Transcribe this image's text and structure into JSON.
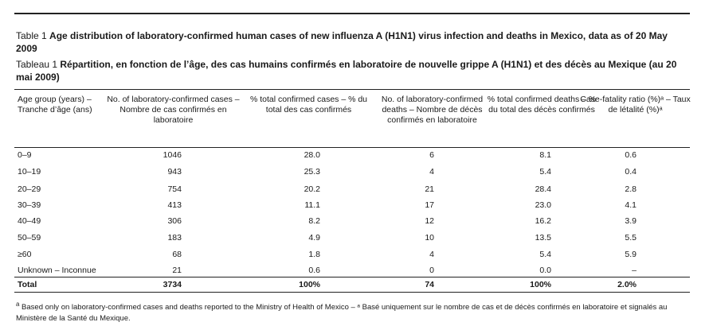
{
  "caption_en": {
    "label": "Table 1",
    "text": "Age distribution of laboratory-confirmed human cases of new influenza A (H1N1) virus infection and deaths in Mexico, data as of 20 May 2009"
  },
  "caption_fr": {
    "label": "Tableau 1",
    "text": "Répartition, en fonction de l’âge, des cas humains confirmés en laboratoire de nouvelle grippe A (H1N1) et des décès au Mexique (au 20 mai 2009)"
  },
  "table": {
    "headers": [
      "Age group (years) – Tranche d’âge (ans)",
      "No. of laboratory-confirmed cases – Nombre de cas confirmés en laboratoire",
      "% total confirmed cases – % du total des cas confirmés",
      "No. of laboratory-confirmed deaths – Nombre de décès confirmés en laboratoire",
      "% total confirmed deaths – % du total des décès confirmés",
      "Case-fatality ratio (%)ᵃ – Taux de létalité (%)ᵃ"
    ],
    "rows": [
      [
        "0–9",
        "1046",
        "28.0",
        "6",
        "8.1",
        "0.6"
      ],
      [
        "10–19",
        "943",
        "25.3",
        "4",
        "5.4",
        "0.4"
      ],
      [
        "20–29",
        "754",
        "20.2",
        "21",
        "28.4",
        "2.8"
      ],
      [
        "30–39",
        "413",
        "11.1",
        "17",
        "23.0",
        "4.1"
      ],
      [
        "40–49",
        "306",
        "8.2",
        "12",
        "16.2",
        "3.9"
      ],
      [
        "50–59",
        "183",
        "4.9",
        "10",
        "13.5",
        "5.5"
      ],
      [
        "≥60",
        "68",
        "1.8",
        "4",
        "5.4",
        "5.9"
      ],
      [
        "Unknown – Inconnue",
        "21",
        "0.6",
        "0",
        "0.0",
        "–"
      ]
    ],
    "total": [
      "Total",
      "3734",
      "100%",
      "74",
      "100%",
      "2.0%"
    ]
  },
  "footnote": {
    "marker": "a",
    "text": "Based only on laboratory-confirmed cases and deaths reported to the Ministry of Health of Mexico – ᵃ Basé uniquement sur le nombre de cas et de décès confirmés en laboratoire et signalés au Ministère de la Santé du Mexique."
  }
}
